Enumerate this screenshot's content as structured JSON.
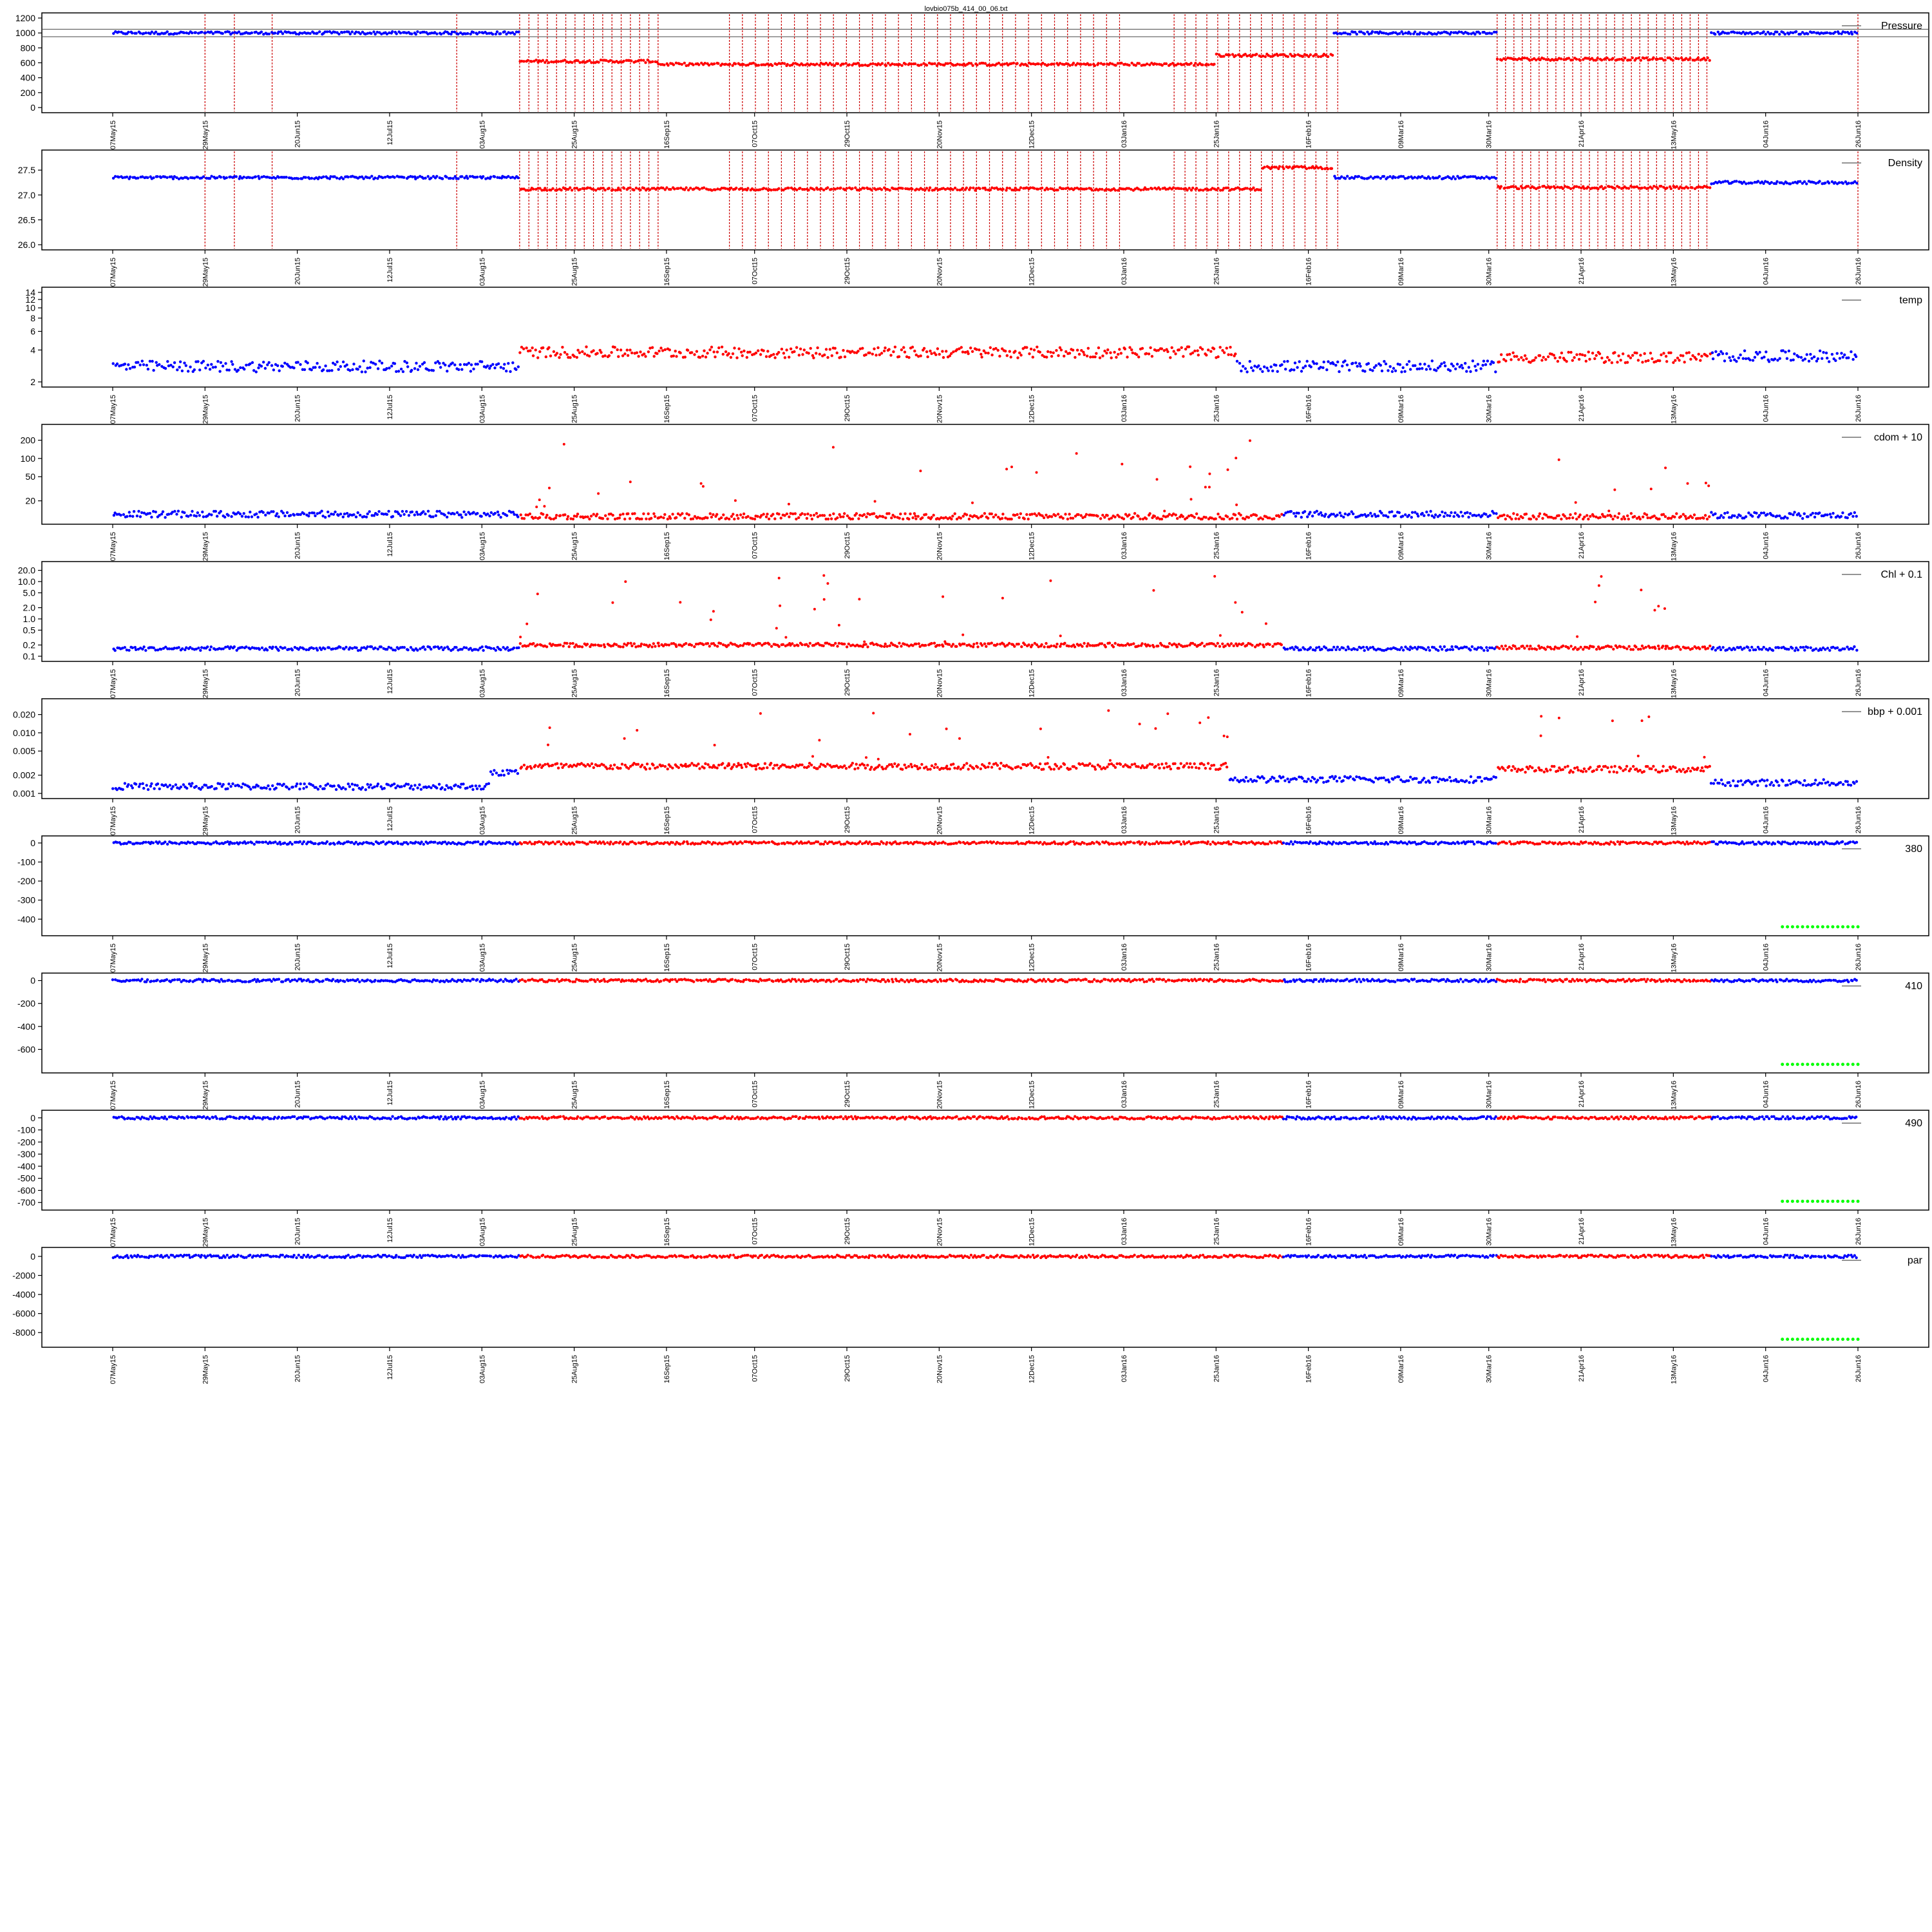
{
  "title": "lovbio075b_414_00_06.txt",
  "colors": {
    "good": "#0000ff",
    "bad": "#ff0000",
    "flag": "#00ff00",
    "vline": "#cc0000",
    "frame": "#000000"
  },
  "x_dates": [
    "07May15",
    "29May15",
    "20Jun15",
    "12Jul15",
    "03Aug15",
    "25Aug15",
    "16Sep15",
    "07Oct15",
    "29Oct15",
    "20Nov15",
    "12Dec15",
    "03Jan16",
    "25Jan16",
    "16Feb16",
    "09Mar16",
    "30Mar16",
    "21Apr16",
    "13May16",
    "04Jun16",
    "26Jun16"
  ],
  "chart_data": [
    {
      "type": "scatter",
      "legend": "Pressure",
      "scale": "linear",
      "ylim": [
        0,
        1200
      ],
      "yticks": [
        "0",
        "200",
        "400",
        "600",
        "800",
        "1000",
        "1200"
      ],
      "hlines": [
        950,
        1050
      ],
      "vlines": true,
      "baseline": 1000,
      "segments": [
        {
          "from": "07May15",
          "to": "12Aug15",
          "class": "good",
          "value": 1000
        },
        {
          "from": "12Aug15",
          "to": "14Sep15",
          "class": "bad",
          "value": 620
        },
        {
          "from": "14Sep15",
          "to": "25Jan16",
          "class": "bad",
          "value": 580
        },
        {
          "from": "25Jan16",
          "to": "22Feb16",
          "class": "bad",
          "value": 700
        },
        {
          "from": "22Feb16",
          "to": "01Apr16",
          "class": "good",
          "value": 1000
        },
        {
          "from": "01Apr16",
          "to": "22May16",
          "class": "bad",
          "value": 650
        },
        {
          "from": "22May16",
          "to": "26Jun16",
          "class": "good",
          "value": 1000
        }
      ]
    },
    {
      "type": "scatter",
      "legend": "Density",
      "scale": "linear",
      "ylim": [
        26.0,
        27.8
      ],
      "yticks": [
        "26.0",
        "26.5",
        "27.0",
        "27.5"
      ],
      "vlines": true,
      "segments": [
        {
          "from": "07May15",
          "to": "12Aug15",
          "class": "good",
          "value": 27.35
        },
        {
          "from": "12Aug15",
          "to": "05Feb16",
          "class": "bad",
          "value": 27.12
        },
        {
          "from": "05Feb16",
          "to": "22Feb16",
          "class": "bad",
          "value": 27.55
        },
        {
          "from": "22Feb16",
          "to": "01Apr16",
          "class": "good",
          "value": 27.35
        },
        {
          "from": "01Apr16",
          "to": "22May16",
          "class": "bad",
          "value": 27.15
        },
        {
          "from": "22May16",
          "to": "26Jun16",
          "class": "good",
          "value": 27.25
        }
      ]
    },
    {
      "type": "scatter",
      "legend": "temp",
      "scale": "log",
      "ylim": [
        2,
        14
      ],
      "yticks": [
        "2",
        "4",
        "6",
        "8",
        "10",
        "12",
        "14"
      ],
      "segments": [
        {
          "from": "07May15",
          "to": "12Aug15",
          "class": "good",
          "value": 2.8
        },
        {
          "from": "12Aug15",
          "to": "30Jan16",
          "class": "bad",
          "value": 3.8
        },
        {
          "from": "30Jan16",
          "to": "01Apr16",
          "class": "good",
          "value": 2.8
        },
        {
          "from": "01Apr16",
          "to": "22May16",
          "class": "bad",
          "value": 3.4
        },
        {
          "from": "22May16",
          "to": "26Jun16",
          "class": "good",
          "value": 3.5
        }
      ]
    },
    {
      "type": "scatter",
      "legend": "cdom + 10",
      "scale": "log",
      "ylim": [
        10,
        300
      ],
      "yticks": [
        "20",
        "50",
        "100",
        "200"
      ],
      "segments": [
        {
          "from": "07May15",
          "to": "12Aug15",
          "class": "good",
          "value": 12
        },
        {
          "from": "12Aug15",
          "to": "10Feb16",
          "class": "bad",
          "value": 11
        },
        {
          "from": "10Feb16",
          "to": "01Apr16",
          "class": "good",
          "value": 12
        },
        {
          "from": "01Apr16",
          "to": "22May16",
          "class": "bad",
          "value": 11
        },
        {
          "from": "22May16",
          "to": "26Jun16",
          "class": "good",
          "value": 11.5
        }
      ]
    },
    {
      "type": "scatter",
      "legend": "Chl + 0.1",
      "scale": "log",
      "ylim": [
        0.1,
        25
      ],
      "yticks": [
        "0.1",
        "0.2",
        "0.5",
        "1.0",
        "2.0",
        "5.0",
        "10.0",
        "20.0"
      ],
      "segments": [
        {
          "from": "07May15",
          "to": "12Aug15",
          "class": "good",
          "value": 0.16
        },
        {
          "from": "12Aug15",
          "to": "10Feb16",
          "class": "bad",
          "value": 0.2
        },
        {
          "from": "10Feb16",
          "to": "01Apr16",
          "class": "good",
          "value": 0.16
        },
        {
          "from": "01Apr16",
          "to": "22May16",
          "class": "bad",
          "value": 0.17
        },
        {
          "from": "22May16",
          "to": "26Jun16",
          "class": "good",
          "value": 0.16
        }
      ]
    },
    {
      "type": "scatter",
      "legend": "bbp + 0.001",
      "scale": "log",
      "ylim": [
        0.001,
        0.03
      ],
      "yticks": [
        "0.001",
        "0.002",
        "0.005",
        "0.010",
        "0.020"
      ],
      "segments": [
        {
          "from": "07May15",
          "to": "05Aug15",
          "class": "good",
          "value": 0.0013
        },
        {
          "from": "05Aug15",
          "to": "12Aug15",
          "class": "good",
          "value": 0.0022
        },
        {
          "from": "12Aug15",
          "to": "28Jan16",
          "class": "bad",
          "value": 0.0028
        },
        {
          "from": "28Jan16",
          "to": "01Apr16",
          "class": "good",
          "value": 0.0017
        },
        {
          "from": "01Apr16",
          "to": "22May16",
          "class": "bad",
          "value": 0.0025
        },
        {
          "from": "22May16",
          "to": "26Jun16",
          "class": "good",
          "value": 0.0015
        }
      ]
    },
    {
      "type": "scatter",
      "legend": "380",
      "scale": "linear",
      "ylim": [
        -460,
        10
      ],
      "yticks": [
        "-400",
        "-300",
        "-200",
        "-100",
        "0"
      ],
      "flag": {
        "from": "08Jun16",
        "to": "26Jun16",
        "value": -440
      },
      "segments": [
        {
          "from": "07May15",
          "to": "12Aug15",
          "class": "good",
          "value": 0
        },
        {
          "from": "12Aug15",
          "to": "10Feb16",
          "class": "bad",
          "value": 0
        },
        {
          "from": "10Feb16",
          "to": "01Apr16",
          "class": "good",
          "value": 0
        },
        {
          "from": "01Apr16",
          "to": "22May16",
          "class": "bad",
          "value": 0
        },
        {
          "from": "22May16",
          "to": "26Jun16",
          "class": "good",
          "value": 0
        }
      ]
    },
    {
      "type": "scatter",
      "legend": "410",
      "scale": "linear",
      "ylim": [
        -760,
        20
      ],
      "yticks": [
        "-600",
        "-400",
        "-200",
        "0"
      ],
      "flag": {
        "from": "08Jun16",
        "to": "26Jun16",
        "value": -730
      },
      "segments": [
        {
          "from": "07May15",
          "to": "12Aug15",
          "class": "good",
          "value": 0
        },
        {
          "from": "12Aug15",
          "to": "10Feb16",
          "class": "bad",
          "value": 0
        },
        {
          "from": "10Feb16",
          "to": "01Apr16",
          "class": "good",
          "value": 0
        },
        {
          "from": "01Apr16",
          "to": "22May16",
          "class": "bad",
          "value": 0
        },
        {
          "from": "22May16",
          "to": "26Jun16",
          "class": "good",
          "value": 0
        }
      ]
    },
    {
      "type": "scatter",
      "legend": "490",
      "scale": "linear",
      "ylim": [
        -720,
        20
      ],
      "yticks": [
        "-700",
        "-600",
        "-500",
        "-400",
        "-300",
        "-200",
        "-100",
        "0"
      ],
      "flag": {
        "from": "08Jun16",
        "to": "26Jun16",
        "value": -690
      },
      "segments": [
        {
          "from": "07May15",
          "to": "12Aug15",
          "class": "good",
          "value": 0
        },
        {
          "from": "12Aug15",
          "to": "10Feb16",
          "class": "bad",
          "value": 0
        },
        {
          "from": "10Feb16",
          "to": "01Apr16",
          "class": "good",
          "value": 0
        },
        {
          "from": "01Apr16",
          "to": "22May16",
          "class": "bad",
          "value": 0
        },
        {
          "from": "22May16",
          "to": "26Jun16",
          "class": "good",
          "value": 0
        }
      ]
    },
    {
      "type": "scatter",
      "legend": "par",
      "scale": "linear",
      "ylim": [
        -9000,
        400
      ],
      "yticks": [
        "-8000",
        "-6000",
        "-4000",
        "-2000",
        "0"
      ],
      "flag": {
        "from": "08Jun16",
        "to": "26Jun16",
        "value": -8700
      },
      "segments": [
        {
          "from": "07May15",
          "to": "12Aug15",
          "class": "good",
          "value": 0
        },
        {
          "from": "12Aug15",
          "to": "10Feb16",
          "class": "bad",
          "value": 0
        },
        {
          "from": "10Feb16",
          "to": "01Apr16",
          "class": "good",
          "value": 0
        },
        {
          "from": "01Apr16",
          "to": "22May16",
          "class": "bad",
          "value": 0
        },
        {
          "from": "22May16",
          "to": "26Jun16",
          "class": "good",
          "value": 0
        }
      ]
    }
  ]
}
